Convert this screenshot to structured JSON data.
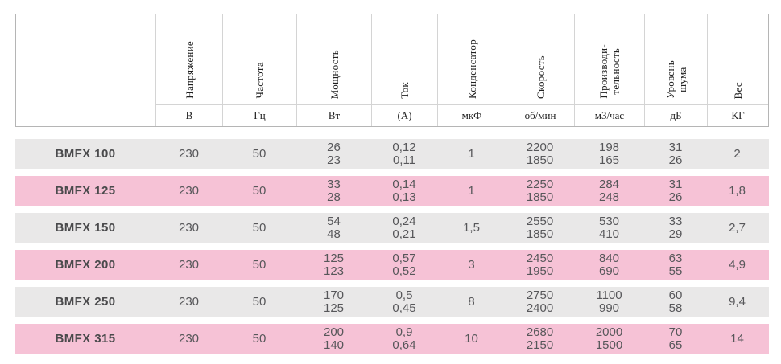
{
  "chart_data": {
    "type": "table",
    "columns": [
      {
        "label": "Напряжение",
        "unit": "В"
      },
      {
        "label": "Частота",
        "unit": "Гц"
      },
      {
        "label": "Мощность",
        "unit": "Вт"
      },
      {
        "label": "Ток",
        "unit": "(А)"
      },
      {
        "label": "Конденсатор",
        "unit": "мкФ"
      },
      {
        "label": "Скорость",
        "unit": "об/мин"
      },
      {
        "label": "Производи-\nтельность",
        "unit": "м3/час"
      },
      {
        "label": "Уровень\nшума",
        "unit": "дБ"
      },
      {
        "label": "Вес",
        "unit": "КГ"
      }
    ],
    "rows": [
      {
        "model": "BMFX 100",
        "highlight": false,
        "values": [
          "230",
          "50",
          "26\n23",
          "0,12\n0,11",
          "1",
          "2200\n1850",
          "198\n165",
          "31\n26",
          "2"
        ]
      },
      {
        "model": "BMFX 125",
        "highlight": true,
        "values": [
          "230",
          "50",
          "33\n28",
          "0,14\n0,13",
          "1",
          "2250\n1850",
          "284\n248",
          "31\n26",
          "1,8"
        ]
      },
      {
        "model": "BMFX 150",
        "highlight": false,
        "values": [
          "230",
          "50",
          "54\n48",
          "0,24\n0,21",
          "1,5",
          "2550\n1850",
          "530\n410",
          "33\n29",
          "2,7"
        ]
      },
      {
        "model": "BMFX 200",
        "highlight": true,
        "values": [
          "230",
          "50",
          "125\n123",
          "0,57\n0,52",
          "3",
          "2450\n1950",
          "840\n690",
          "63\n55",
          "4,9"
        ]
      },
      {
        "model": "BMFX 250",
        "highlight": false,
        "values": [
          "230",
          "50",
          "170\n125",
          "0,5\n0,45",
          "8",
          "2750\n2400",
          "1100\n990",
          "60\n58",
          "9,4"
        ]
      },
      {
        "model": "BMFX 315",
        "highlight": true,
        "values": [
          "230",
          "50",
          "200\n140",
          "0,9\n0,64",
          "10",
          "2680\n2150",
          "2000\n1500",
          "70\n65",
          "14"
        ]
      }
    ]
  },
  "colors": {
    "highlight_pink": "#f6c2d6",
    "row_gray": "#e9e8e8",
    "border_outer": "#b5b5b5",
    "border_inner": "#d4d4d4",
    "header_text": "#212121",
    "data_text": "#57575a",
    "model_text": "#4a4a4c"
  }
}
